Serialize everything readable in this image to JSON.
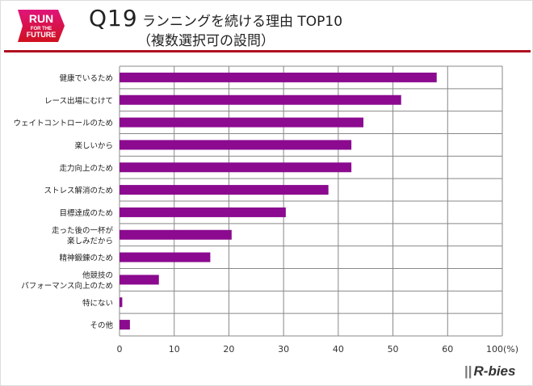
{
  "header": {
    "logo_text": [
      "RUN",
      "FOR THE",
      "FUTURE"
    ],
    "question": "Q19",
    "title_line1": "ランニングを続ける理由 TOP10",
    "title_line2": "（複数選択可の設問）"
  },
  "brand": "R-bies",
  "chart_data": {
    "type": "bar",
    "orientation": "horizontal",
    "categories": [
      "健康でいるため",
      "レース出場にむけて",
      "ウェイトコントロールのため",
      "楽しいから",
      "走力向上のため",
      "ストレス解消のため",
      "目標達成のため",
      "走った後の一杯が\n楽しみだから",
      "精神鍛錬のため",
      "他競技の\nパフォーマンス向上のため",
      "特にない",
      "その他"
    ],
    "values": [
      58,
      51.5,
      44.6,
      42.4,
      42.4,
      38.2,
      30.4,
      20.5,
      16.6,
      7.2,
      0.5,
      1.9
    ],
    "xticks": [
      "0",
      "10",
      "20",
      "30",
      "40",
      "50",
      "60",
      "100(%)"
    ],
    "xlim": [
      0,
      70
    ],
    "axis_break": "last tick labeled 100",
    "grid": true,
    "bar_color": "#8b0a8f"
  }
}
